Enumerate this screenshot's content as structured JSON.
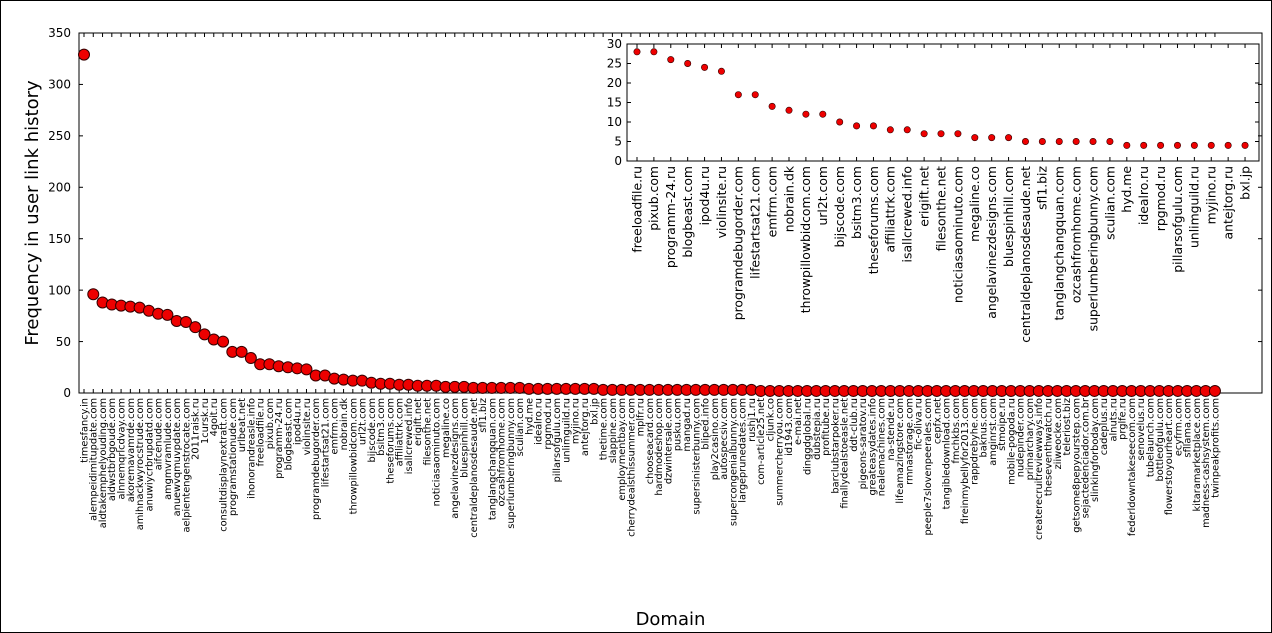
{
  "colors": {
    "marker_fill": "#ee0000",
    "marker_stroke": "#330000",
    "axis": "#000000",
    "background": "#ffffff"
  },
  "chart_data": [
    {
      "type": "scatter",
      "xlabel": "Domain",
      "ylabel": "Frequency in user link history",
      "ylim": [
        0,
        350
      ],
      "yticks": [
        0,
        50,
        100,
        150,
        200,
        250,
        300,
        350
      ],
      "grid": false,
      "categories": [
        "timesfancy.in",
        "alempeidimitupdate.com",
        "aldtakemphelyouding.com",
        "aldwstbrbgoude.com",
        "alnnemqrlcdvay.com",
        "akoremavamrde.com",
        "amihnackwyrocstrude.com",
        "anuwiycrbrupdatd.com",
        "aifcenude.com",
        "amgmvramlude.com",
        "anuewvqmuvpdate.com",
        "aelpientengenstrocate.com",
        "2011raisk.ru",
        "1cursk.ru",
        "4goit.ru",
        "consultdisplaynextratt.com",
        "programstationude.com",
        "urlbeat.net",
        "ihonorandreasle.info",
        "freeloadfile.ru",
        "pixub.com",
        "programm-24.ru",
        "blogbeast.com",
        "ipod4u.ru",
        "violinsite.ru",
        "programdebugorder.com",
        "lifestartsat21.com",
        "emfrm.com",
        "nobrain.dk",
        "throwpillowbidcom.com",
        "url2t.com",
        "bijscode.com",
        "bsitm3.com",
        "theseforums.com",
        "affiliattrk.com",
        "isallcrewed.info",
        "erigift.net",
        "filesonthe.net",
        "noticiasaominuto.com",
        "megaline.co",
        "angelavinezdesigns.com",
        "bluespinhill.com",
        "centraldeplanosdesaude.net",
        "sfl1.biz",
        "tanglangchangquan.com",
        "ozcashfromhome.com",
        "superlumberingbunny.com",
        "sculian.com",
        "hyd.me",
        "idealro.ru",
        "rpgmod.ru",
        "pillarsofgulu.com",
        "unlimguild.ru",
        "myjino.ru",
        "antejtorg.ru",
        "bxl.jp",
        "thetime.com",
        "slappine.com",
        "employmentbay.com",
        "cherrydealsthissummer.com",
        "mplfr.ru",
        "chooseacard.com",
        "hardmodeshop.com",
        "dzwintersale.com",
        "pusku.com",
        "mangad.ru",
        "supersinisterbunny.com",
        "bliped.info",
        "play2casino.com",
        "autospecsiv.com",
        "supercongenialbunny.com",
        "largeprunedates.com",
        "rushj1.ru",
        "com-article25.net",
        "cljunk.co",
        "summercherryou.com",
        "id1943.com",
        "e-mai.net",
        "dinggdglobal.ru",
        "dubstepia.ru",
        "profitube.ru",
        "barclubstarpoker.ru",
        "finallydealstoeasle.net",
        "ddt-club.ru",
        "pigeons-saratov.ru",
        "greateasydates.info",
        "nealemachines.com",
        "na-stende.ru",
        "lifeamazingstore.com",
        "rmnastorage.com",
        "fic-oliva.ru",
        "peeple7slovenpeerales.com",
        "cepfx.net",
        "tangibledownload.com",
        "fmchkbs.com",
        "fireinmybellyfor2013.com",
        "rappdrebyhe.com",
        "baknus.com",
        "amginrst.com",
        "stmoipe.ru",
        "mobile-pogoda.ru",
        "nudepinder.com",
        "primarchary.com",
        "createrecruitreviewways.info",
        "theseventhwatch.ru",
        "ziiweocke.com",
        "teleriost.biz",
        "getsome8pepyourstep.com",
        "sejactedenciador.com.br",
        "slinkingforboday.com",
        "cadeplus.ru",
        "alnuts.ru",
        "prglfe.ru",
        "federldowntakeseecom.com",
        "senovelus.ru",
        "tubelaunch.com",
        "bottleofgulu.com",
        "flowerstoyourheart.com",
        "ecyfrm.com",
        "sfllama.com",
        "kitaramarketplace.com",
        "madness-cashsystem.com",
        "twinpeakprofits.com"
      ],
      "values": [
        329,
        96,
        88,
        86,
        85,
        84,
        83,
        80,
        77,
        76,
        70,
        69,
        64,
        57,
        52,
        50,
        40,
        40,
        34,
        28,
        28,
        26,
        25,
        24,
        23,
        17,
        17,
        14,
        13,
        12,
        12,
        10,
        9,
        9,
        8,
        8,
        7,
        7,
        7,
        6,
        6,
        6,
        5,
        5,
        5,
        5,
        5,
        5,
        4,
        4,
        4,
        4,
        4,
        4,
        4,
        4,
        3,
        3,
        3,
        3,
        3,
        3,
        3,
        3,
        3,
        3,
        3,
        3,
        3,
        3,
        3,
        3,
        3,
        2,
        2,
        2,
        2,
        2,
        2,
        2,
        2,
        2,
        2,
        2,
        2,
        2,
        2,
        2,
        2,
        2,
        2,
        2,
        2,
        2,
        2,
        2,
        2,
        2,
        2,
        2,
        2,
        2,
        2,
        2,
        2,
        2,
        2,
        2,
        2,
        2,
        2,
        2,
        2,
        2,
        2,
        2,
        2,
        2,
        2,
        2,
        2,
        2,
        2
      ]
    },
    {
      "type": "scatter",
      "xlabel": "",
      "ylabel": "",
      "ylim": [
        0,
        30
      ],
      "yticks": [
        0,
        5,
        10,
        15,
        20,
        25,
        30
      ],
      "grid": false,
      "placement": "upper-right inset",
      "categories": [
        "freeloadfile.ru",
        "pixub.com",
        "programm-24.ru",
        "blogbeast.com",
        "ipod4u.ru",
        "violinsite.ru",
        "programdebugorder.com",
        "lifestartsat21.com",
        "emfrm.com",
        "nobrain.dk",
        "throwpillowbidcom.com",
        "url2t.com",
        "bijscode.com",
        "bsitm3.com",
        "theseforums.com",
        "affiliattrk.com",
        "isallcrewed.info",
        "erigift.net",
        "filesonthe.net",
        "noticiasaominuto.com",
        "megaline.co",
        "angelavinezdesigns.com",
        "bluespinhill.com",
        "centraldeplanosdesaude.net",
        "sfl1.biz",
        "tanglangchangquan.com",
        "ozcashfromhome.com",
        "superlumberingbunny.com",
        "sculian.com",
        "hyd.me",
        "idealro.ru",
        "rpgmod.ru",
        "pillarsofgulu.com",
        "unlimguild.ru",
        "myjino.ru",
        "antejtorg.ru",
        "bxl.jp"
      ],
      "values": [
        28,
        28,
        26,
        25,
        24,
        23,
        17,
        17,
        14,
        13,
        12,
        12,
        10,
        9,
        9,
        8,
        8,
        7,
        7,
        7,
        6,
        6,
        6,
        5,
        5,
        5,
        5,
        5,
        5,
        4,
        4,
        4,
        4,
        4,
        4,
        4,
        4
      ]
    }
  ]
}
